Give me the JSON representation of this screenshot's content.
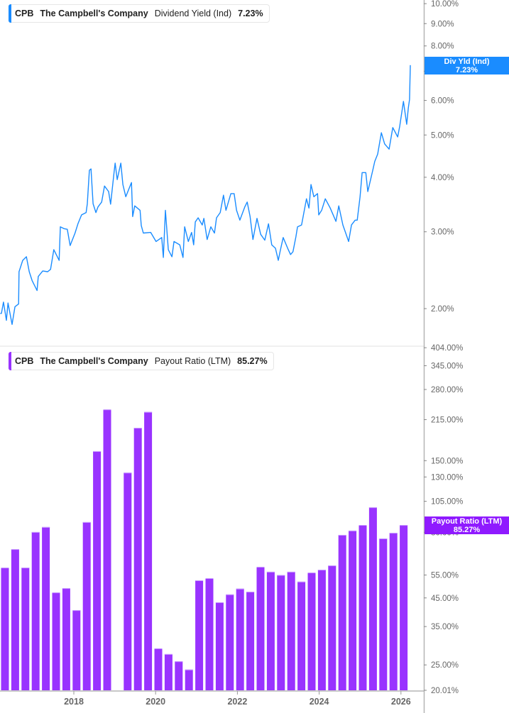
{
  "colors": {
    "yield_line": "#1a8cff",
    "payout_bar": "#9933ff",
    "axis": "#b0b0b0",
    "text": "#666666"
  },
  "top_legend": {
    "ticker": "CPB",
    "company": "The Campbell's Company",
    "metric": "Dividend Yield (Ind)",
    "value": "7.23%"
  },
  "bottom_legend": {
    "ticker": "CPB",
    "company": "The Campbell's Company",
    "metric": "Payout Ratio (LTM)",
    "value": "85.27%"
  },
  "top_badge": {
    "label": "Div Yld (Ind)",
    "value": "7.23%"
  },
  "bottom_badge": {
    "label": "Payout Ratio (LTM)",
    "value": "85.27%"
  },
  "chart_data": [
    {
      "type": "line",
      "series": [
        {
          "name": "Dividend Yield (Ind)",
          "unit": "%"
        }
      ],
      "yscale": "log",
      "ylim": [
        1.8,
        10.2
      ],
      "xlim": [
        2016.19,
        2026.54
      ],
      "y_ticks": [
        "10.00%",
        "9.00%",
        "8.00%",
        "7.00%",
        "6.00%",
        "5.00%",
        "4.00%",
        "3.00%",
        "2.00%"
      ],
      "y_tick_values": [
        10,
        9,
        8,
        7,
        6,
        5,
        4,
        3,
        2
      ],
      "grid": false,
      "points": [
        [
          2016.2,
          1.95
        ],
        [
          2016.23,
          1.95
        ],
        [
          2016.28,
          2.07
        ],
        [
          2016.35,
          1.88
        ],
        [
          2016.39,
          2.06
        ],
        [
          2016.49,
          1.84
        ],
        [
          2016.56,
          2.02
        ],
        [
          2016.65,
          2.05
        ],
        [
          2016.66,
          2.43
        ],
        [
          2016.75,
          2.58
        ],
        [
          2016.84,
          2.63
        ],
        [
          2016.91,
          2.43
        ],
        [
          2016.98,
          2.32
        ],
        [
          2017.1,
          2.2
        ],
        [
          2017.13,
          2.37
        ],
        [
          2017.24,
          2.44
        ],
        [
          2017.36,
          2.43
        ],
        [
          2017.43,
          2.46
        ],
        [
          2017.51,
          2.73
        ],
        [
          2017.64,
          2.58
        ],
        [
          2017.67,
          3.08
        ],
        [
          2017.76,
          3.05
        ],
        [
          2017.84,
          3.04
        ],
        [
          2017.91,
          2.79
        ],
        [
          2018.03,
          2.98
        ],
        [
          2018.1,
          3.13
        ],
        [
          2018.19,
          3.28
        ],
        [
          2018.3,
          3.32
        ],
        [
          2018.33,
          3.48
        ],
        [
          2018.38,
          4.15
        ],
        [
          2018.42,
          4.18
        ],
        [
          2018.47,
          3.48
        ],
        [
          2018.54,
          3.32
        ],
        [
          2018.59,
          3.42
        ],
        [
          2018.68,
          3.51
        ],
        [
          2018.75,
          3.82
        ],
        [
          2018.85,
          3.71
        ],
        [
          2018.9,
          3.47
        ],
        [
          2018.99,
          4.15
        ],
        [
          2019.01,
          4.31
        ],
        [
          2019.06,
          3.95
        ],
        [
          2019.15,
          4.31
        ],
        [
          2019.2,
          3.85
        ],
        [
          2019.27,
          3.61
        ],
        [
          2019.41,
          3.89
        ],
        [
          2019.44,
          3.25
        ],
        [
          2019.49,
          3.44
        ],
        [
          2019.62,
          3.36
        ],
        [
          2019.65,
          3.1
        ],
        [
          2019.7,
          2.98
        ],
        [
          2019.88,
          2.99
        ],
        [
          2020.01,
          2.85
        ],
        [
          2020.15,
          2.91
        ],
        [
          2020.19,
          2.62
        ],
        [
          2020.24,
          3.36
        ],
        [
          2020.31,
          2.73
        ],
        [
          2020.4,
          2.63
        ],
        [
          2020.45,
          2.85
        ],
        [
          2020.59,
          2.8
        ],
        [
          2020.67,
          2.62
        ],
        [
          2020.71,
          3.08
        ],
        [
          2020.8,
          2.85
        ],
        [
          2020.88,
          2.99
        ],
        [
          2020.93,
          2.8
        ],
        [
          2020.97,
          3.16
        ],
        [
          2021.04,
          3.23
        ],
        [
          2021.14,
          3.11
        ],
        [
          2021.18,
          3.22
        ],
        [
          2021.26,
          2.88
        ],
        [
          2021.35,
          3.08
        ],
        [
          2021.44,
          2.98
        ],
        [
          2021.49,
          3.23
        ],
        [
          2021.58,
          3.32
        ],
        [
          2021.66,
          3.64
        ],
        [
          2021.72,
          3.36
        ],
        [
          2021.84,
          3.67
        ],
        [
          2021.92,
          3.67
        ],
        [
          2021.98,
          3.36
        ],
        [
          2022.06,
          3.19
        ],
        [
          2022.18,
          3.42
        ],
        [
          2022.24,
          3.51
        ],
        [
          2022.31,
          3.25
        ],
        [
          2022.38,
          2.88
        ],
        [
          2022.48,
          3.22
        ],
        [
          2022.57,
          2.96
        ],
        [
          2022.67,
          2.87
        ],
        [
          2022.76,
          3.13
        ],
        [
          2022.84,
          2.8
        ],
        [
          2022.93,
          2.75
        ],
        [
          2023.0,
          2.58
        ],
        [
          2023.05,
          2.72
        ],
        [
          2023.12,
          2.91
        ],
        [
          2023.23,
          2.75
        ],
        [
          2023.3,
          2.66
        ],
        [
          2023.36,
          2.7
        ],
        [
          2023.43,
          2.92
        ],
        [
          2023.47,
          3.08
        ],
        [
          2023.57,
          3.11
        ],
        [
          2023.69,
          3.57
        ],
        [
          2023.75,
          3.4
        ],
        [
          2023.8,
          3.85
        ],
        [
          2023.87,
          3.61
        ],
        [
          2023.96,
          3.67
        ],
        [
          2023.99,
          3.28
        ],
        [
          2024.06,
          3.36
        ],
        [
          2024.15,
          3.57
        ],
        [
          2024.27,
          3.4
        ],
        [
          2024.41,
          3.17
        ],
        [
          2024.48,
          3.44
        ],
        [
          2024.58,
          3.11
        ],
        [
          2024.72,
          2.85
        ],
        [
          2024.79,
          3.11
        ],
        [
          2024.88,
          3.19
        ],
        [
          2024.93,
          3.19
        ],
        [
          2025.0,
          3.61
        ],
        [
          2025.05,
          4.1
        ],
        [
          2025.14,
          4.1
        ],
        [
          2025.19,
          3.71
        ],
        [
          2025.31,
          4.15
        ],
        [
          2025.36,
          4.35
        ],
        [
          2025.43,
          4.52
        ],
        [
          2025.52,
          5.06
        ],
        [
          2025.6,
          4.77
        ],
        [
          2025.71,
          4.64
        ],
        [
          2025.8,
          5.2
        ],
        [
          2025.92,
          4.95
        ],
        [
          2025.97,
          5.24
        ],
        [
          2026.06,
          5.97
        ],
        [
          2026.14,
          5.29
        ],
        [
          2026.18,
          5.77
        ],
        [
          2026.21,
          6.03
        ],
        [
          2026.23,
          7.23
        ]
      ]
    },
    {
      "type": "bar",
      "series": [
        {
          "name": "Payout Ratio (LTM)",
          "unit": "%"
        }
      ],
      "yscale": "log",
      "ylim": [
        20.01,
        404
      ],
      "xlim": [
        2016.19,
        2026.54
      ],
      "y_ticks": [
        "404.00%",
        "345.00%",
        "280.00%",
        "215.00%",
        "150.00%",
        "130.00%",
        "105.00%",
        "80.00%",
        "55.00%",
        "45.00%",
        "35.00%",
        "25.00%",
        "20.01%"
      ],
      "y_tick_values": [
        404,
        345,
        280,
        215,
        150,
        130,
        105,
        80,
        55,
        45,
        35,
        25,
        20.01
      ],
      "x_ticks": [
        "2018",
        "2020",
        "2022",
        "2024",
        "2026"
      ],
      "x_tick_values": [
        2018,
        2020,
        2022,
        2024,
        2026
      ],
      "grid": false,
      "categories": [
        "2016-04",
        "2016-07",
        "2016-10",
        "2017-01",
        "2017-04",
        "2017-07",
        "2017-10",
        "2018-01",
        "2018-04",
        "2018-07",
        "2018-10",
        "2019-01",
        "2019-04",
        "2019-07",
        "2019-10",
        "2020-01",
        "2020-04",
        "2020-07",
        "2020-10",
        "2021-01",
        "2021-04",
        "2021-07",
        "2021-10",
        "2022-01",
        "2022-04",
        "2022-07",
        "2022-10",
        "2023-01",
        "2023-04",
        "2023-07",
        "2023-10",
        "2024-01",
        "2024-04",
        "2024-07",
        "2024-10",
        "2025-01",
        "2025-04",
        "2025-07",
        "2025-10",
        "2026-01"
      ],
      "values": [
        58.7,
        69.0,
        58.7,
        80.2,
        83.8,
        47.2,
        49.0,
        40.4,
        87.5,
        163,
        235,
        null,
        135,
        200,
        230,
        28.9,
        27.5,
        25.8,
        24.0,
        52.5,
        53.5,
        43.3,
        46.4,
        48.8,
        47.5,
        59.1,
        56.6,
        55.0,
        56.6,
        51.9,
        56.2,
        57.6,
        59.8,
        78.2,
        81.2,
        85.3,
        99.6,
        75.8,
        79.6,
        85.27
      ]
    }
  ]
}
